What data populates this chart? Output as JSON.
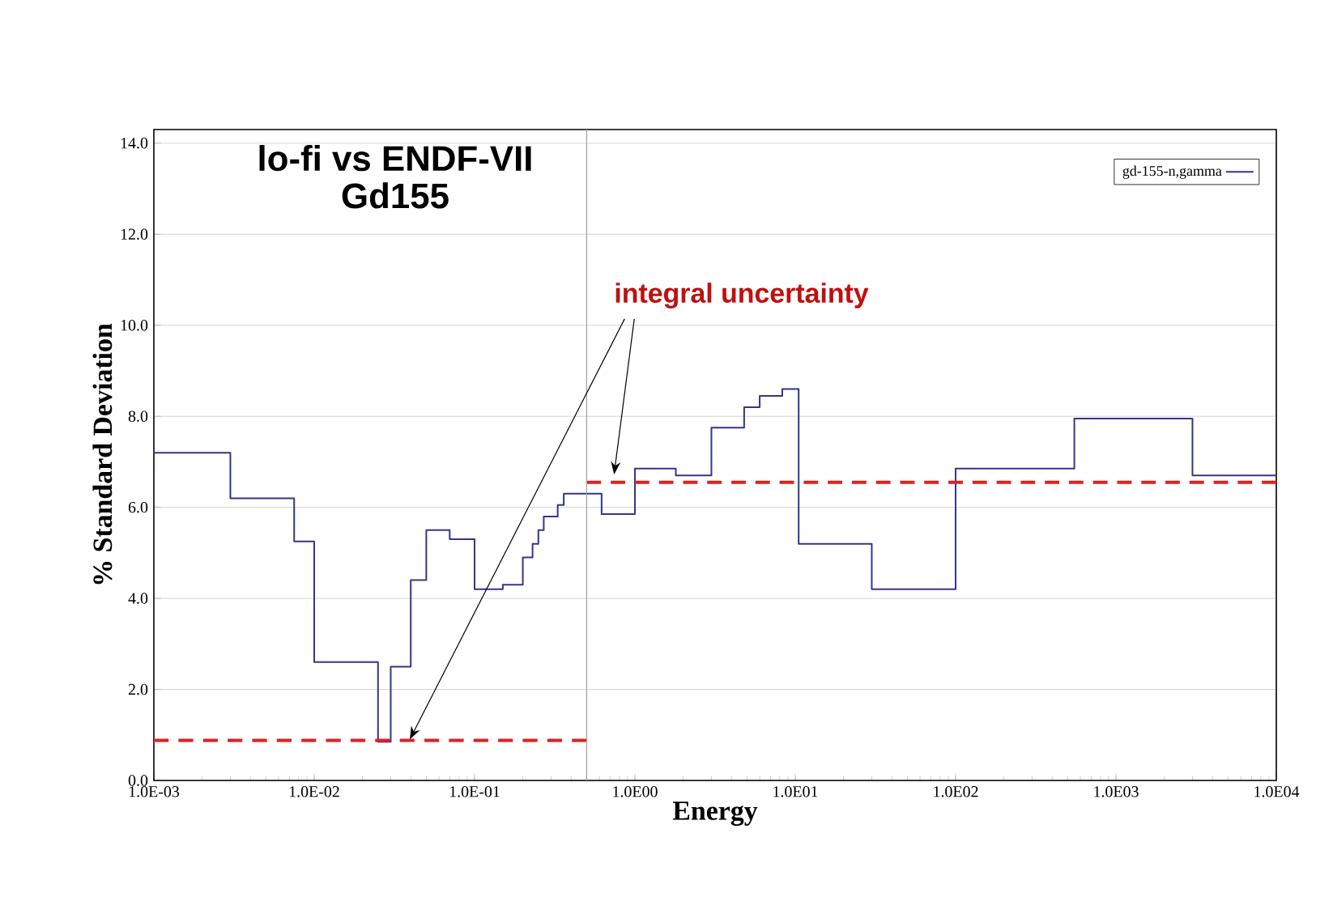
{
  "chart_data": {
    "type": "step",
    "title": "lo-fi vs ENDF-VII",
    "subtitle": "Gd155",
    "xlabel": "Energy",
    "ylabel": "% Standard Deviation",
    "annotations": [
      "integral uncertainty"
    ],
    "log": "x",
    "grid": "y",
    "legend": "top right",
    "xlim": [
      0.001,
      10000
    ],
    "ylim": [
      0,
      14.3
    ],
    "xticks": [
      {
        "value": 0.001,
        "label": "1.0E-03"
      },
      {
        "value": 0.01,
        "label": "1.0E-02"
      },
      {
        "value": 0.1,
        "label": "1.0E-01"
      },
      {
        "value": 1,
        "label": "1.0E00"
      },
      {
        "value": 10,
        "label": "1.0E01"
      },
      {
        "value": 100,
        "label": "1.0E02"
      },
      {
        "value": 1000,
        "label": "1.0E03"
      },
      {
        "value": 10000,
        "label": "1.0E04"
      }
    ],
    "yticks": [
      {
        "value": 0,
        "label": "0.0"
      },
      {
        "value": 2,
        "label": "2.0"
      },
      {
        "value": 4,
        "label": "4.0"
      },
      {
        "value": 6,
        "label": "6.0"
      },
      {
        "value": 8,
        "label": "8.0"
      },
      {
        "value": 10,
        "label": "10.0"
      },
      {
        "value": 12,
        "label": "12.0"
      },
      {
        "value": 14,
        "label": "14.0"
      }
    ],
    "ref_lines": [
      {
        "axis": "x",
        "value": 0.5,
        "color": "#a0a0a0"
      }
    ],
    "series": [
      {
        "name": "gd-155-n,gamma",
        "type": "step",
        "color": "#35358a",
        "x": [
          0.001,
          0.003,
          0.0075,
          0.01,
          0.025,
          0.03,
          0.04,
          0.05,
          0.07,
          0.1,
          0.15,
          0.2,
          0.23,
          0.25,
          0.27,
          0.33,
          0.36,
          0.62,
          1.0,
          1.8,
          3.0,
          4.8,
          6.0,
          8.3,
          10.5,
          30,
          100,
          550,
          3000,
          10000
        ],
        "values": [
          7.2,
          6.2,
          5.25,
          2.6,
          0.85,
          2.5,
          4.4,
          5.5,
          5.3,
          4.2,
          4.3,
          4.9,
          5.2,
          5.5,
          5.8,
          6.05,
          6.3,
          5.85,
          6.85,
          6.7,
          7.75,
          8.2,
          8.45,
          8.6,
          5.2,
          4.2,
          6.85,
          7.95,
          6.7,
          6.7
        ]
      },
      {
        "type": "line",
        "color": "#e02020",
        "line_style": "dashed",
        "x": [
          0.001,
          0.5
        ],
        "values": [
          0.88,
          0.88
        ]
      },
      {
        "type": "line",
        "color": "#e02020",
        "line_style": "dashed",
        "x": [
          0.5,
          10000
        ],
        "values": [
          6.55,
          6.55
        ]
      }
    ]
  }
}
